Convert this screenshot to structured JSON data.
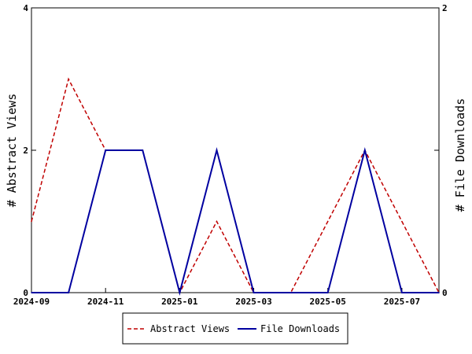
{
  "chart_data": {
    "type": "line",
    "x": [
      "2024-09",
      "2024-10",
      "2024-11",
      "2024-12",
      "2025-01",
      "2025-02",
      "2025-03",
      "2025-04",
      "2025-05",
      "2025-06",
      "2025-07",
      "2025-08"
    ],
    "x_ticks": [
      "2024-09",
      "2024-11",
      "2025-01",
      "2025-03",
      "2025-05",
      "2025-07"
    ],
    "series": [
      {
        "name": "Abstract Views",
        "axis": "left",
        "color": "#c00000",
        "dash": "dashed",
        "values": [
          1,
          3,
          2,
          2,
          0,
          1,
          0,
          0,
          1,
          2,
          1,
          0
        ]
      },
      {
        "name": "File Downloads",
        "axis": "right",
        "color": "#0000a0",
        "dash": "solid",
        "values": [
          0,
          0,
          1,
          1,
          0,
          1,
          0,
          0,
          0,
          1,
          0,
          0
        ]
      }
    ],
    "ylabel": "# Abstract Views",
    "y2label": "# File Downloads",
    "ylim": [
      0,
      4
    ],
    "y2lim": [
      0,
      2
    ],
    "yticks": [
      "0",
      "2",
      "4"
    ],
    "y2ticks": [
      "0",
      "1",
      "2"
    ],
    "grid": false,
    "legend_position": "bottom-center"
  }
}
